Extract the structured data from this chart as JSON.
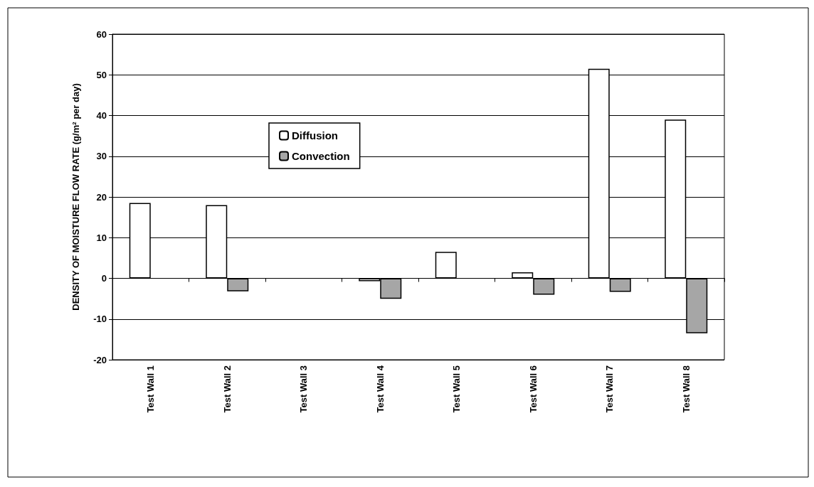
{
  "chart_data": {
    "type": "bar",
    "ylabel": "DENSITY OF MOISTURE FLOW RATE (g/m² per day)",
    "categories": [
      "Test Wall 1",
      "Test Wall 2",
      "Test Wall 3",
      "Test Wall 4",
      "Test Wall 5",
      "Test Wall 6",
      "Test Wall 7",
      "Test Wall 8"
    ],
    "series": [
      {
        "name": "Diffusion",
        "color": "#ffffff",
        "values": [
          18.5,
          18,
          null,
          -0.7,
          6.5,
          1.5,
          51.5,
          39
        ]
      },
      {
        "name": "Convection",
        "color": "#a6a6a6",
        "values": [
          null,
          -3.2,
          null,
          -5,
          null,
          -4,
          -3.3,
          -13.5
        ]
      }
    ],
    "ylim": [
      -20,
      60
    ],
    "yticks": [
      -20,
      -10,
      0,
      10,
      20,
      30,
      40,
      50,
      60
    ],
    "grid": "y",
    "legend": "top left"
  }
}
